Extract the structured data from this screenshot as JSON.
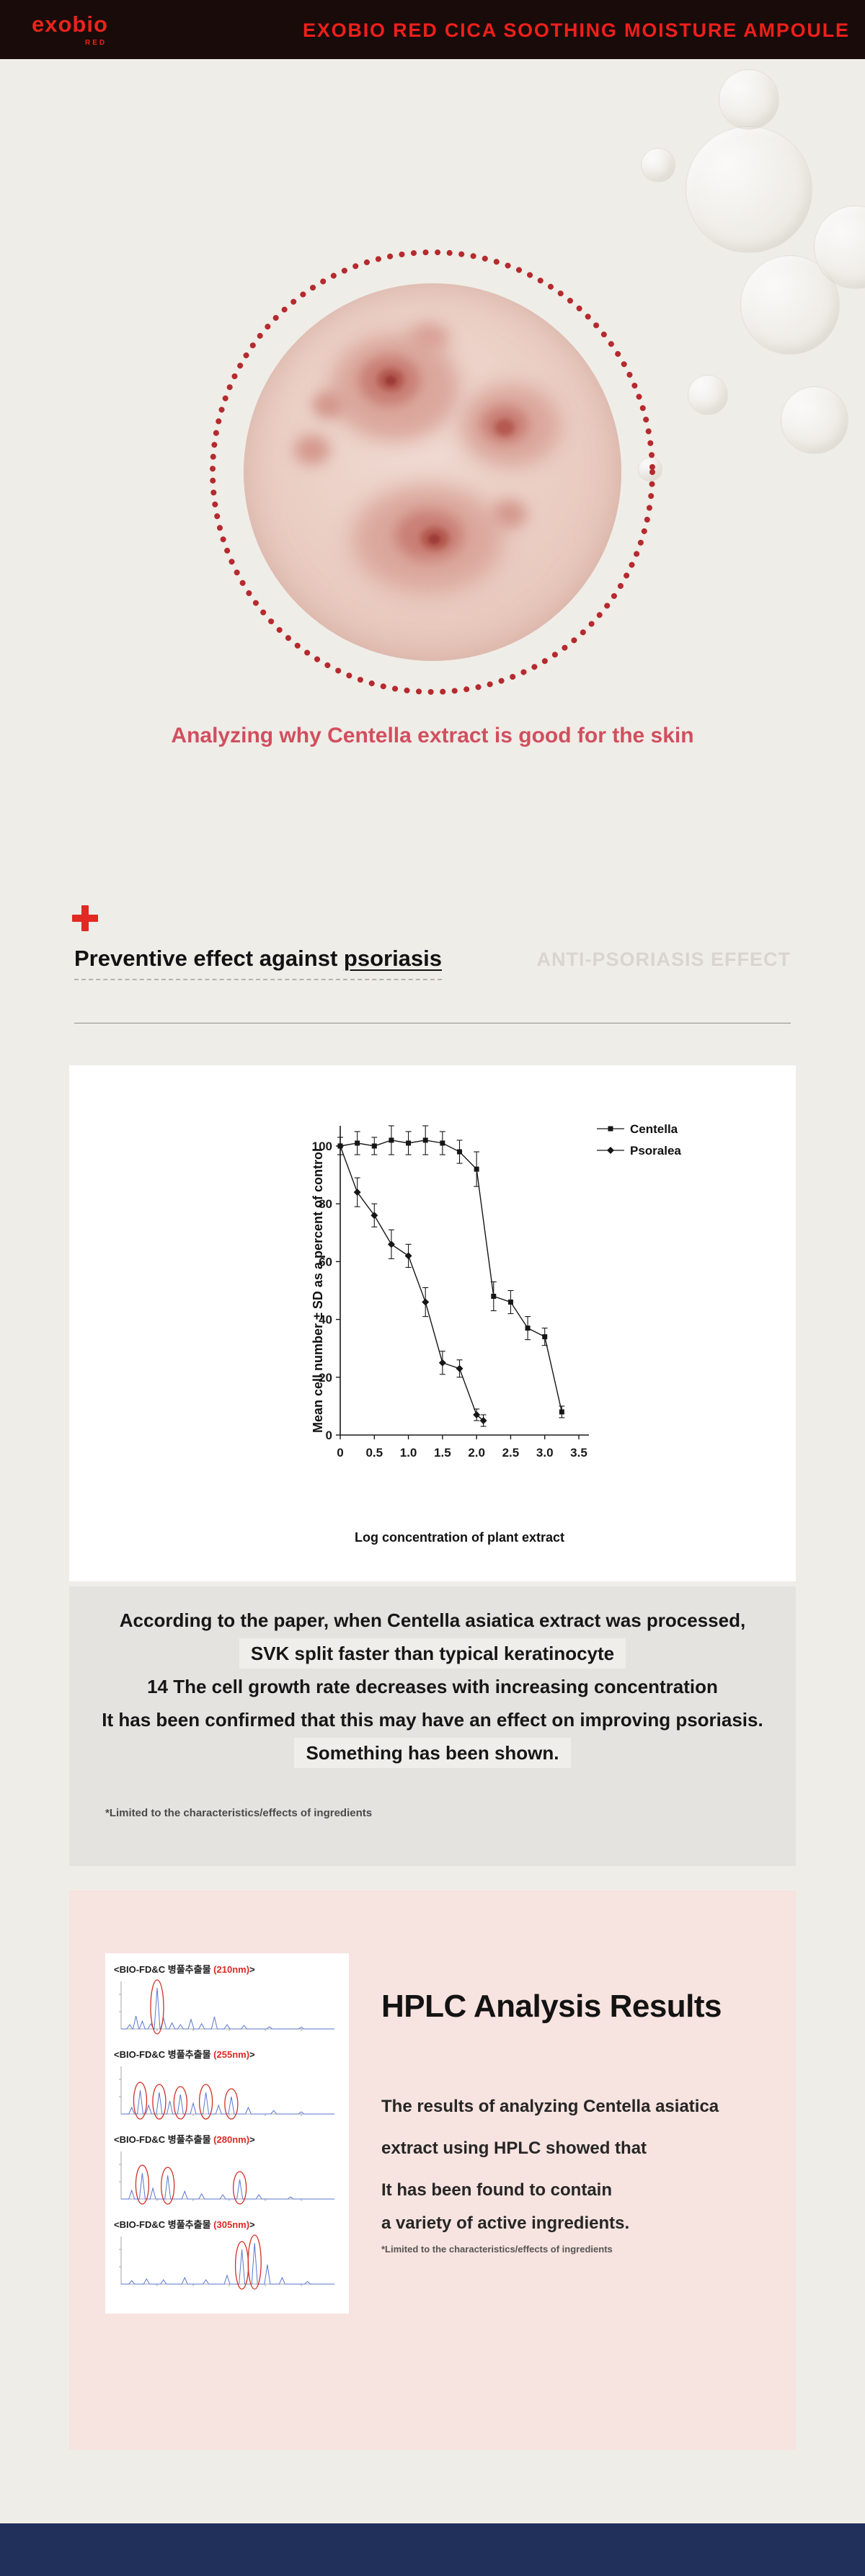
{
  "header": {
    "logo": "exobio",
    "logo_sub": "RED",
    "title": "EXOBIO RED CICA SOOTHING MOISTURE AMPOULE"
  },
  "hero": {
    "caption": "Analyzing why Centella extract is good for the skin"
  },
  "psoriasis": {
    "heading_prefix": "Preventive effect against ",
    "heading_keyword": "psoriasis",
    "watermark": "ANTI-PSORIASIS EFFECT",
    "summary_lines": [
      "According to the paper, when Centella asiatica extract was processed,",
      "SVK split faster than typical keratinocyte",
      "14 The cell growth rate decreases with increasing concentration",
      "It has been confirmed that this may have an effect on improving psoriasis.",
      "Something has been shown."
    ],
    "disclaimer": "*Limited to the characteristics/effects of ingredients"
  },
  "chart_data": {
    "type": "line",
    "title": "",
    "xlabel": "Log concentration of plant extract",
    "ylabel": "Mean cell number ± SD as a percent of control",
    "xlim": [
      0,
      3.5
    ],
    "ylim": [
      0,
      110
    ],
    "xticks": [
      0,
      0.5,
      1.0,
      1.5,
      2.0,
      2.5,
      3.0,
      3.5
    ],
    "yticks": [
      0,
      20,
      40,
      60,
      80,
      100
    ],
    "grid": false,
    "legend_position": "top-right",
    "series": [
      {
        "name": "Centella",
        "marker": "square",
        "points": [
          [
            0,
            100,
            3
          ],
          [
            0.25,
            101,
            4
          ],
          [
            0.5,
            100,
            3
          ],
          [
            0.75,
            102,
            5
          ],
          [
            1.0,
            101,
            4
          ],
          [
            1.25,
            102,
            5
          ],
          [
            1.5,
            101,
            4
          ],
          [
            1.75,
            98,
            4
          ],
          [
            2.0,
            92,
            6
          ],
          [
            2.25,
            48,
            5
          ],
          [
            2.5,
            46,
            4
          ],
          [
            2.75,
            37,
            4
          ],
          [
            3.0,
            34,
            3
          ],
          [
            3.25,
            8,
            2
          ]
        ]
      },
      {
        "name": "Psoralea",
        "marker": "diamond",
        "points": [
          [
            0,
            100,
            3
          ],
          [
            0.25,
            84,
            5
          ],
          [
            0.5,
            76,
            4
          ],
          [
            0.75,
            66,
            5
          ],
          [
            1.0,
            62,
            4
          ],
          [
            1.25,
            46,
            5
          ],
          [
            1.5,
            25,
            4
          ],
          [
            1.75,
            23,
            3
          ],
          [
            2.0,
            7,
            2
          ],
          [
            2.1,
            5,
            2
          ]
        ]
      }
    ]
  },
  "hplc": {
    "title": "HPLC Analysis Results",
    "body_lines": [
      "The results of analyzing Centella asiatica",
      "extract using HPLC showed that",
      "It has been found to contain",
      "a variety of active ingredients."
    ],
    "disclaimer": "*Limited to the characteristics/effects of ingredients",
    "charts": [
      {
        "label_prefix": "<BIO-FD&C 병풀추출물 ",
        "wavelength": "(210nm)",
        "label_suffix": ">",
        "peaks": [
          [
            0.04,
            0.1
          ],
          [
            0.07,
            0.3
          ],
          [
            0.1,
            0.18
          ],
          [
            0.14,
            0.12
          ],
          [
            0.17,
            0.95
          ],
          [
            0.2,
            0.25
          ],
          [
            0.24,
            0.14
          ],
          [
            0.28,
            0.1
          ],
          [
            0.33,
            0.22
          ],
          [
            0.38,
            0.12
          ],
          [
            0.44,
            0.28
          ],
          [
            0.5,
            0.1
          ],
          [
            0.58,
            0.08
          ],
          [
            0.7,
            0.05
          ],
          [
            0.85,
            0.04
          ]
        ],
        "circles": [
          [
            0.17,
            0.95
          ]
        ]
      },
      {
        "label_prefix": "<BIO-FD&C 병풀추출물 ",
        "wavelength": "(255nm)",
        "label_suffix": ">",
        "peaks": [
          [
            0.05,
            0.15
          ],
          [
            0.09,
            0.55
          ],
          [
            0.13,
            0.2
          ],
          [
            0.18,
            0.5
          ],
          [
            0.23,
            0.3
          ],
          [
            0.28,
            0.45
          ],
          [
            0.34,
            0.25
          ],
          [
            0.4,
            0.5
          ],
          [
            0.46,
            0.2
          ],
          [
            0.52,
            0.4
          ],
          [
            0.6,
            0.15
          ],
          [
            0.72,
            0.08
          ],
          [
            0.85,
            0.05
          ]
        ],
        "circles": [
          [
            0.09,
            0.55
          ],
          [
            0.18,
            0.5
          ],
          [
            0.28,
            0.45
          ],
          [
            0.4,
            0.5
          ],
          [
            0.52,
            0.4
          ]
        ]
      },
      {
        "label_prefix": "<BIO-FD&C 병풀추출물 ",
        "wavelength": "(280nm)",
        "label_suffix": ">",
        "peaks": [
          [
            0.05,
            0.2
          ],
          [
            0.1,
            0.6
          ],
          [
            0.15,
            0.25
          ],
          [
            0.22,
            0.55
          ],
          [
            0.3,
            0.18
          ],
          [
            0.38,
            0.12
          ],
          [
            0.48,
            0.1
          ],
          [
            0.56,
            0.45
          ],
          [
            0.65,
            0.1
          ],
          [
            0.8,
            0.05
          ]
        ],
        "circles": [
          [
            0.1,
            0.6
          ],
          [
            0.22,
            0.55
          ],
          [
            0.56,
            0.45
          ]
        ]
      },
      {
        "label_prefix": "<BIO-FD&C 병풀추출물 ",
        "wavelength": "(305nm)",
        "label_suffix": ">",
        "peaks": [
          [
            0.05,
            0.08
          ],
          [
            0.12,
            0.12
          ],
          [
            0.2,
            0.1
          ],
          [
            0.3,
            0.15
          ],
          [
            0.4,
            0.1
          ],
          [
            0.5,
            0.2
          ],
          [
            0.57,
            0.8
          ],
          [
            0.63,
            0.95
          ],
          [
            0.69,
            0.45
          ],
          [
            0.76,
            0.15
          ],
          [
            0.88,
            0.06
          ]
        ],
        "circles": [
          [
            0.57,
            0.8
          ],
          [
            0.63,
            0.95
          ]
        ]
      }
    ]
  },
  "colors": {
    "header_bg": "#190b09",
    "brand_red": "#e8241c",
    "caption_pink": "#d14f5e",
    "dot_ring_red": "#b52a2e",
    "pink_section_bg": "#f7e3df",
    "summary_box_bg": "#e4e3e0",
    "footer_navy": "#20305a",
    "chromatogram_blue": "#5a77cf",
    "annotation_red": "#d03128"
  }
}
